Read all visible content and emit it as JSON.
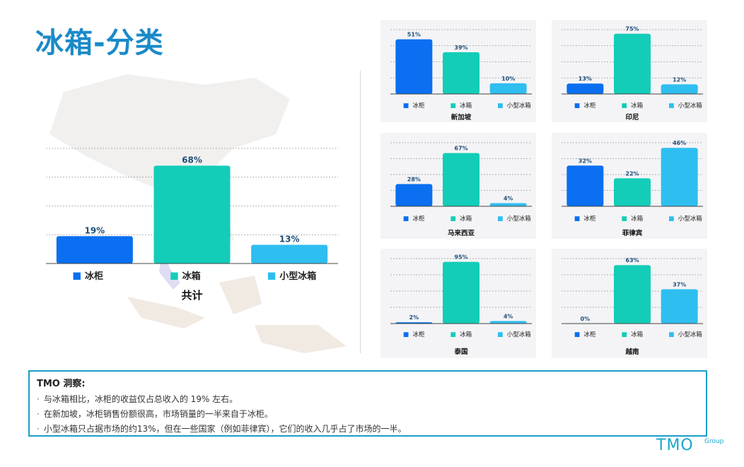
{
  "page": {
    "title": "冰箱-分类"
  },
  "colors": {
    "series": [
      "#0a6ff0",
      "#13cdb8",
      "#2fbef0"
    ],
    "title": "#1a8ac9",
    "label": "#1f4f7a"
  },
  "chart_data": [
    {
      "type": "bar",
      "id": "total",
      "title": "共计",
      "categories": [
        "冰柜",
        "冰箱",
        "小型冰箱"
      ],
      "values": [
        19,
        68,
        13
      ],
      "value_labels": [
        "19%",
        "68%",
        "13%"
      ],
      "ylim": [
        0,
        80
      ],
      "grid": true,
      "legend": "bottom"
    },
    {
      "type": "bar",
      "id": "singapore",
      "title": "新加坡",
      "categories": [
        "冰柜",
        "冰箱",
        "小型冰箱"
      ],
      "values": [
        51,
        39,
        10
      ],
      "value_labels": [
        "51%",
        "39%",
        "10%"
      ],
      "ylim": [
        0,
        60
      ],
      "grid": true,
      "legend": "bottom"
    },
    {
      "type": "bar",
      "id": "indonesia",
      "title": "印尼",
      "categories": [
        "冰柜",
        "冰箱",
        "小型冰箱"
      ],
      "values": [
        13,
        75,
        12
      ],
      "value_labels": [
        "13%",
        "75%",
        "12%"
      ],
      "ylim": [
        0,
        80
      ],
      "grid": true,
      "legend": "bottom"
    },
    {
      "type": "bar",
      "id": "malaysia",
      "title": "马来西亚",
      "categories": [
        "冰柜",
        "冰箱",
        "小型冰箱"
      ],
      "values": [
        28,
        67,
        4
      ],
      "value_labels": [
        "28%",
        "67%",
        "4%"
      ],
      "ylim": [
        0,
        80
      ],
      "grid": true,
      "legend": "bottom"
    },
    {
      "type": "bar",
      "id": "philippines",
      "title": "菲律宾",
      "categories": [
        "冰柜",
        "冰箱",
        "小型冰箱"
      ],
      "values": [
        32,
        22,
        46
      ],
      "value_labels": [
        "32%",
        "22%",
        "46%"
      ],
      "ylim": [
        0,
        50
      ],
      "grid": true,
      "legend": "bottom"
    },
    {
      "type": "bar",
      "id": "thailand",
      "title": "泰国",
      "categories": [
        "冰柜",
        "冰箱",
        "小型冰箱"
      ],
      "values": [
        2,
        95,
        4
      ],
      "value_labels": [
        "2%",
        "95%",
        "4%"
      ],
      "ylim": [
        0,
        100
      ],
      "grid": true,
      "legend": "bottom"
    },
    {
      "type": "bar",
      "id": "vietnam",
      "title": "越南",
      "categories": [
        "冰柜",
        "冰箱",
        "小型冰箱"
      ],
      "values": [
        0,
        63,
        37
      ],
      "value_labels": [
        "0%",
        "63%",
        "37%"
      ],
      "ylim": [
        0,
        70
      ],
      "grid": true,
      "legend": "bottom"
    }
  ],
  "insights": {
    "title": "TMO 洞察:",
    "items": [
      "与冰箱相比，冰柜的收益仅占总收入的 19% 左右。",
      "在新加坡，冰柜销售份额很高，市场销量的一半来自于冰柜。",
      "小型冰箱只占据市场的约13%，但在一些国家（例如菲律宾），它们的收入几乎占了市场的一半。"
    ]
  },
  "logo": {
    "text": "TMO",
    "sub": "Group"
  }
}
